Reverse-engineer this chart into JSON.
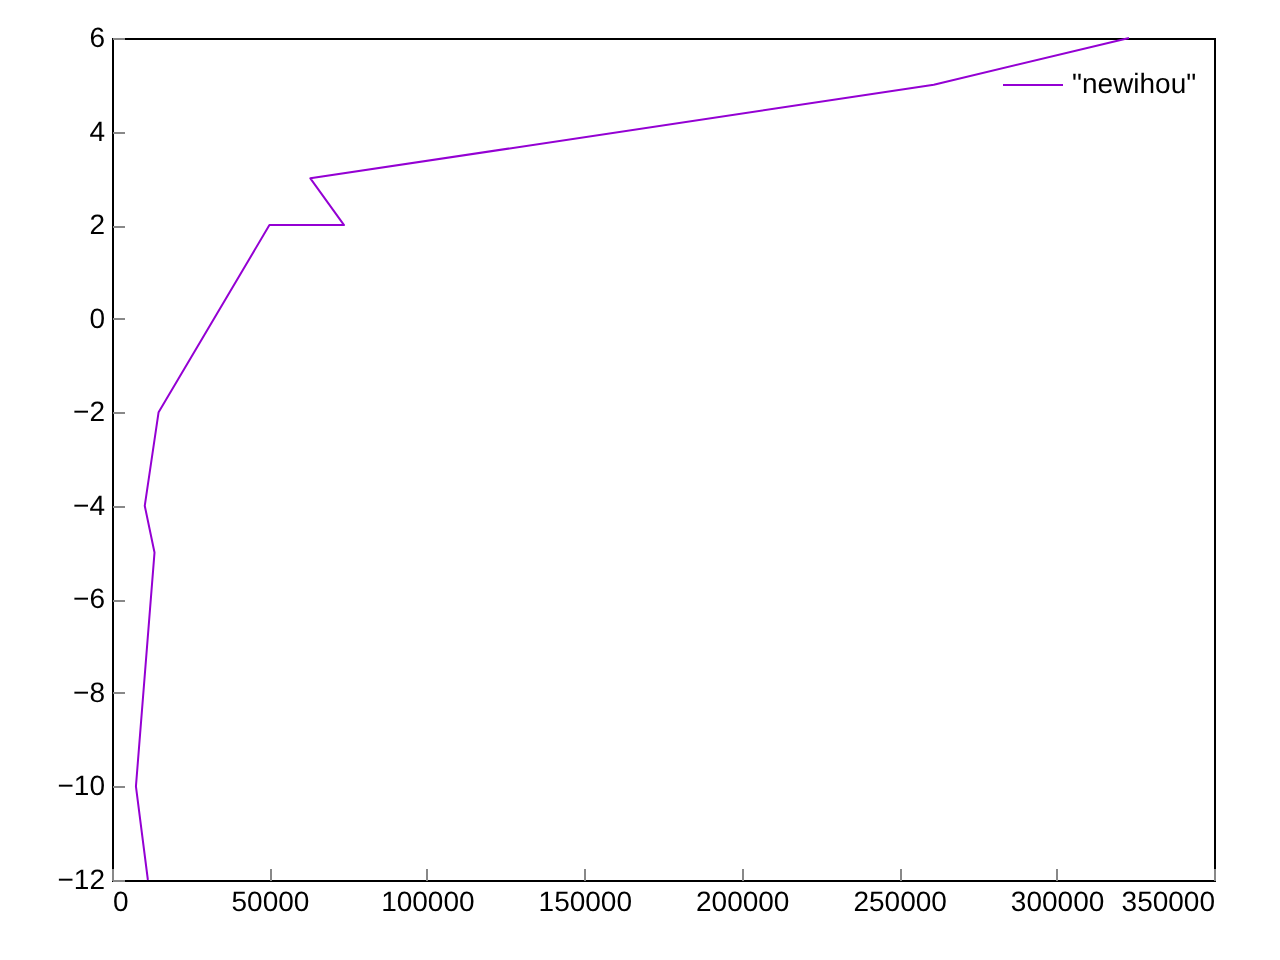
{
  "chart_data": {
    "type": "line",
    "x": [
      11400,
      7600,
      13500,
      10400,
      14800,
      50000,
      73700,
      63000,
      261000,
      323000
    ],
    "series": [
      {
        "name": "\"newihou\"",
        "color": "#9400d3",
        "values": [
          -12,
          -10,
          -5,
          -4,
          -2,
          2,
          2,
          3,
          5,
          6
        ]
      }
    ],
    "xlim": [
      0,
      350000
    ],
    "xticks": [
      0,
      50000,
      100000,
      150000,
      200000,
      250000,
      300000,
      350000
    ],
    "ylim": [
      -12,
      6
    ],
    "yticks": [
      -12,
      -10,
      -8,
      -6,
      -4,
      -2,
      0,
      2,
      4,
      6
    ],
    "grid": false,
    "legend": "top right",
    "marker": "none"
  }
}
